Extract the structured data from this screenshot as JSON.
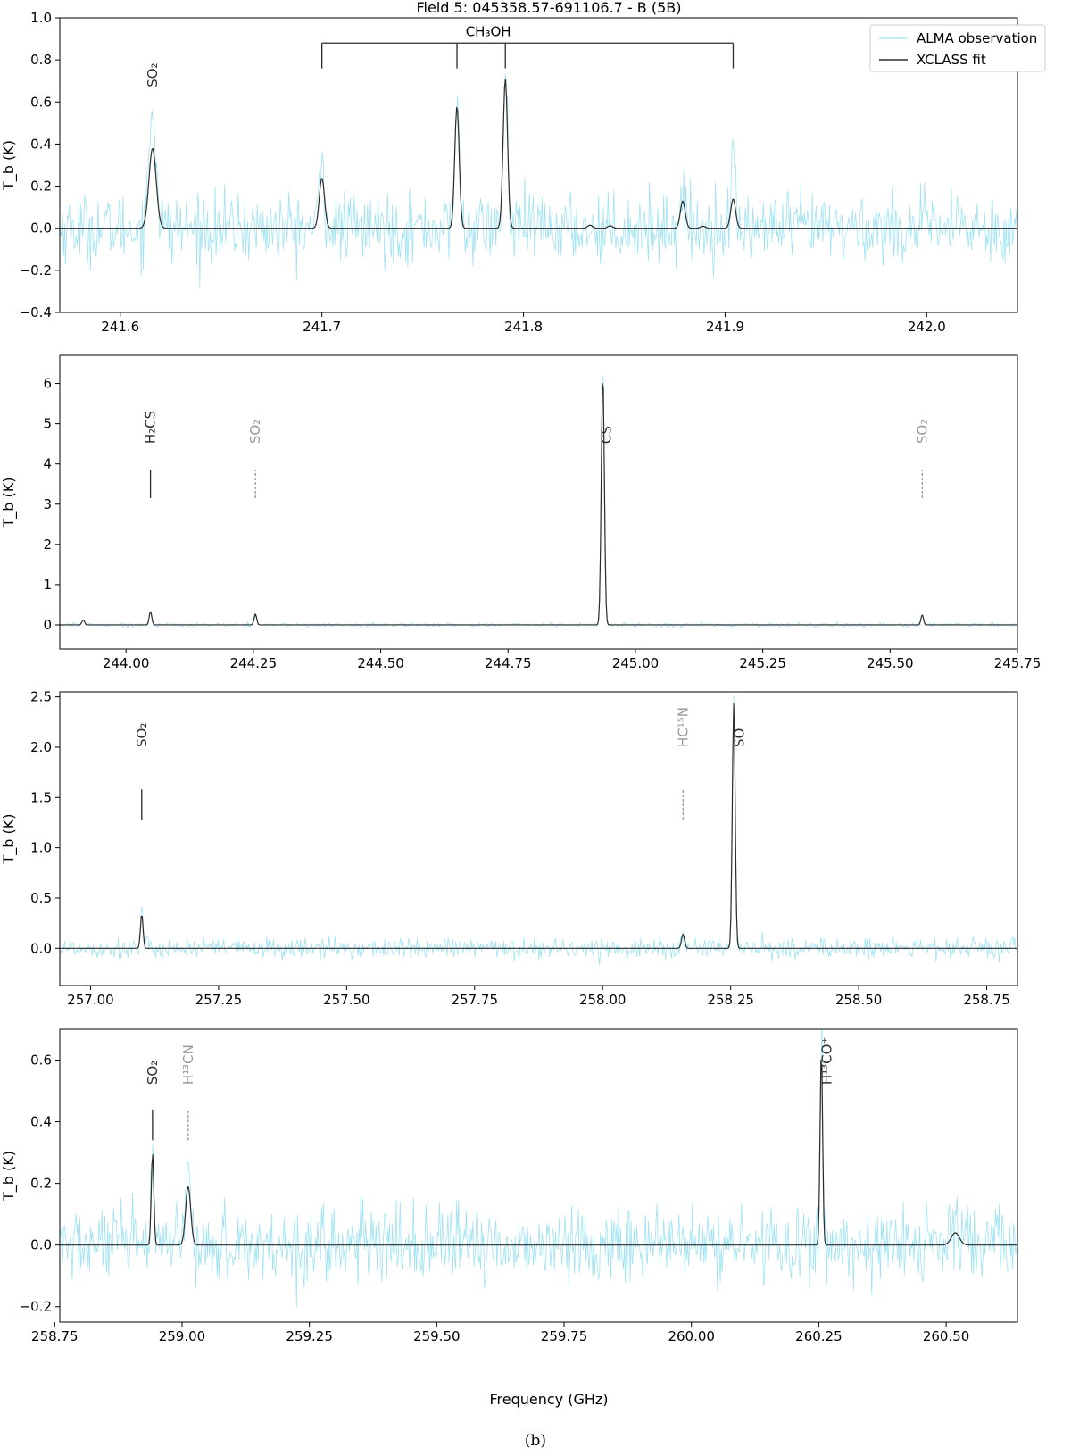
{
  "figure": {
    "title": "Field 5: 045358.57-691106.7 - B (5B)",
    "caption": "(b)",
    "xlabel": "Frequency (GHz)",
    "ylabel": "T_b (K)"
  },
  "colors": {
    "observation": "#9fe3f2",
    "fit": "#2b2b2b",
    "tentative": "#999999",
    "axes": "#000000"
  },
  "chart_data": [
    {
      "type": "line",
      "title": "Field 5: 045358.57-691106.7 - B (5B)",
      "xlabel": "",
      "ylabel": "T_b (K)",
      "xlim": [
        241.57,
        242.045
      ],
      "ylim": [
        -0.4,
        1.0
      ],
      "xticks": [
        241.6,
        241.7,
        241.8,
        241.9,
        242.0
      ],
      "xtick_labels": [
        "241.6",
        "241.7",
        "241.8",
        "241.9",
        "242.0"
      ],
      "yticks": [
        -0.4,
        -0.2,
        0.0,
        0.2,
        0.4,
        0.6,
        0.8,
        1.0
      ],
      "ytick_labels": [
        "−0.4",
        "−0.2",
        "0.0",
        "0.2",
        "0.4",
        "0.6",
        "0.8",
        "1.0"
      ],
      "legend": {
        "position": "top-right",
        "entries": [
          "ALMA observation",
          "XCLASS fit"
        ]
      },
      "noise_rms": 0.08,
      "series": [
        {
          "name": "ALMA observation",
          "style": "observation",
          "peaks": [
            {
              "x": 241.616,
              "amp": 0.57,
              "width": 0.0018
            },
            {
              "x": 241.7,
              "amp": 0.3,
              "width": 0.0013
            },
            {
              "x": 241.767,
              "amp": 0.6,
              "width": 0.0011
            },
            {
              "x": 241.791,
              "amp": 0.72,
              "width": 0.0011
            },
            {
              "x": 241.879,
              "amp": 0.16,
              "width": 0.0012
            },
            {
              "x": 241.904,
              "amp": 0.31,
              "width": 0.0012
            }
          ]
        },
        {
          "name": "XCLASS fit",
          "style": "fit",
          "peaks": [
            {
              "x": 241.616,
              "amp": 0.38,
              "width": 0.0018
            },
            {
              "x": 241.7,
              "amp": 0.24,
              "width": 0.0013
            },
            {
              "x": 241.767,
              "amp": 0.58,
              "width": 0.0011
            },
            {
              "x": 241.791,
              "amp": 0.71,
              "width": 0.0011
            },
            {
              "x": 241.833,
              "amp": 0.015,
              "width": 0.0012
            },
            {
              "x": 241.843,
              "amp": 0.012,
              "width": 0.0012
            },
            {
              "x": 241.879,
              "amp": 0.13,
              "width": 0.0012
            },
            {
              "x": 241.889,
              "amp": 0.01,
              "width": 0.0012
            },
            {
              "x": 241.904,
              "amp": 0.14,
              "width": 0.0012
            }
          ]
        }
      ],
      "line_ids": [
        {
          "text": "SO₂",
          "x": 241.616,
          "y": 0.67,
          "tentative": false,
          "marker": false
        }
      ],
      "bracket": {
        "label": "CH₃OH",
        "x": [
          241.7,
          241.767,
          241.791,
          241.904
        ],
        "y_top": 0.88,
        "y_end": 0.76,
        "label_y": 0.93
      }
    },
    {
      "type": "line",
      "title": "",
      "xlabel": "",
      "ylabel": "T_b (K)",
      "xlim": [
        243.87,
        245.75
      ],
      "ylim": [
        -0.6,
        6.7
      ],
      "xticks": [
        244.0,
        244.25,
        244.5,
        244.75,
        245.0,
        245.25,
        245.5,
        245.75
      ],
      "xtick_labels": [
        "244.00",
        "244.25",
        "244.50",
        "244.75",
        "245.00",
        "245.25",
        "245.50",
        "245.75"
      ],
      "yticks": [
        0,
        1,
        2,
        3,
        4,
        5,
        6
      ],
      "ytick_labels": [
        "0",
        "1",
        "2",
        "3",
        "4",
        "5",
        "6"
      ],
      "noise_rms": 0.025,
      "series": [
        {
          "name": "ALMA observation",
          "style": "observation",
          "peaks": [
            {
              "x": 243.916,
              "amp": 0.13,
              "width": 0.0025
            },
            {
              "x": 244.048,
              "amp": 0.33,
              "width": 0.0025
            },
            {
              "x": 244.254,
              "amp": 0.3,
              "width": 0.0025
            },
            {
              "x": 244.936,
              "amp": 6.45,
              "width": 0.003
            },
            {
              "x": 245.563,
              "amp": 0.25,
              "width": 0.0025
            }
          ]
        },
        {
          "name": "XCLASS fit",
          "style": "fit",
          "peaks": [
            {
              "x": 243.916,
              "amp": 0.13,
              "width": 0.0025
            },
            {
              "x": 244.048,
              "amp": 0.34,
              "width": 0.0025
            },
            {
              "x": 244.254,
              "amp": 0.27,
              "width": 0.0025
            },
            {
              "x": 244.936,
              "amp": 6.25,
              "width": 0.003
            },
            {
              "x": 245.563,
              "amp": 0.25,
              "width": 0.0025
            }
          ]
        }
      ],
      "line_ids": [
        {
          "text": "H₂CS",
          "x": 244.048,
          "y": 4.5,
          "tentative": false,
          "marker": true,
          "marker_y": [
            3.15,
            3.85
          ]
        },
        {
          "text": "SO₂",
          "x": 244.254,
          "y": 4.5,
          "tentative": true,
          "marker": true,
          "marker_y": [
            3.15,
            3.85
          ]
        },
        {
          "text": "CS",
          "x": 244.943,
          "y": 4.5,
          "tentative": false,
          "marker": false
        },
        {
          "text": "SO₂",
          "x": 245.563,
          "y": 4.5,
          "tentative": true,
          "marker": true,
          "marker_y": [
            3.15,
            3.85
          ]
        }
      ]
    },
    {
      "type": "line",
      "title": "",
      "xlabel": "",
      "ylabel": "T_b (K)",
      "xlim": [
        256.94,
        258.81
      ],
      "ylim": [
        -0.37,
        2.55
      ],
      "xticks": [
        257.0,
        257.25,
        257.5,
        257.75,
        258.0,
        258.25,
        258.5,
        258.75
      ],
      "xtick_labels": [
        "257.00",
        "257.25",
        "257.50",
        "257.75",
        "258.00",
        "258.25",
        "258.50",
        "258.75"
      ],
      "yticks": [
        0.0,
        0.5,
        1.0,
        1.5,
        2.0,
        2.5
      ],
      "ytick_labels": [
        "0.0",
        "0.5",
        "1.0",
        "1.5",
        "2.0",
        "2.5"
      ],
      "noise_rms": 0.05,
      "series": [
        {
          "name": "ALMA observation",
          "style": "observation",
          "peaks": [
            {
              "x": 257.1,
              "amp": 0.42,
              "width": 0.0025
            },
            {
              "x": 258.157,
              "amp": 0.15,
              "width": 0.003
            },
            {
              "x": 258.256,
              "amp": 2.48,
              "width": 0.0028
            }
          ]
        },
        {
          "name": "XCLASS fit",
          "style": "fit",
          "peaks": [
            {
              "x": 257.1,
              "amp": 0.34,
              "width": 0.0025
            },
            {
              "x": 258.157,
              "amp": 0.14,
              "width": 0.003
            },
            {
              "x": 258.256,
              "amp": 2.43,
              "width": 0.0028
            }
          ]
        }
      ],
      "line_ids": [
        {
          "text": "SO₂",
          "x": 257.1,
          "y": 2.0,
          "tentative": false,
          "marker": true,
          "marker_y": [
            1.28,
            1.58
          ]
        },
        {
          "text": "HC¹⁵N",
          "x": 258.157,
          "y": 2.0,
          "tentative": true,
          "marker": true,
          "marker_y": [
            1.28,
            1.58
          ]
        },
        {
          "text": "SO",
          "x": 258.267,
          "y": 2.0,
          "tentative": false,
          "marker": false
        }
      ]
    },
    {
      "type": "line",
      "title": "",
      "xlabel": "Frequency (GHz)",
      "ylabel": "T_b (K)",
      "xlim": [
        258.76,
        260.64
      ],
      "ylim": [
        -0.25,
        0.7
      ],
      "xticks": [
        258.75,
        259.0,
        259.25,
        259.5,
        259.75,
        260.0,
        260.25,
        260.5
      ],
      "xtick_labels": [
        "258.75",
        "259.00",
        "259.25",
        "259.50",
        "259.75",
        "260.00",
        "260.25",
        "260.50"
      ],
      "yticks": [
        -0.2,
        0.0,
        0.2,
        0.4,
        0.6
      ],
      "ytick_labels": [
        "−0.2",
        "0.0",
        "0.2",
        "0.4",
        "0.6"
      ],
      "noise_rms": 0.06,
      "series": [
        {
          "name": "ALMA observation",
          "style": "observation",
          "peaks": [
            {
              "x": 258.942,
              "amp": 0.27,
              "width": 0.0025
            },
            {
              "x": 259.012,
              "amp": 0.19,
              "width": 0.005
            },
            {
              "x": 260.255,
              "amp": 0.63,
              "width": 0.0025
            },
            {
              "x": 260.518,
              "amp": 0.04,
              "width": 0.008
            }
          ]
        },
        {
          "name": "XCLASS fit",
          "style": "fit",
          "peaks": [
            {
              "x": 258.942,
              "amp": 0.3,
              "width": 0.0025
            },
            {
              "x": 259.012,
              "amp": 0.19,
              "width": 0.005
            },
            {
              "x": 260.255,
              "amp": 0.63,
              "width": 0.0025
            },
            {
              "x": 260.518,
              "amp": 0.04,
              "width": 0.008
            }
          ]
        }
      ],
      "line_ids": [
        {
          "text": "SO₂",
          "x": 258.942,
          "y": 0.52,
          "tentative": false,
          "marker": true,
          "marker_y": [
            0.34,
            0.44
          ]
        },
        {
          "text": "H¹³CN",
          "x": 259.012,
          "y": 0.52,
          "tentative": true,
          "marker": true,
          "marker_y": [
            0.34,
            0.44
          ]
        },
        {
          "text": "H¹³CO⁺",
          "x": 260.266,
          "y": 0.52,
          "tentative": false,
          "marker": false
        }
      ]
    }
  ]
}
